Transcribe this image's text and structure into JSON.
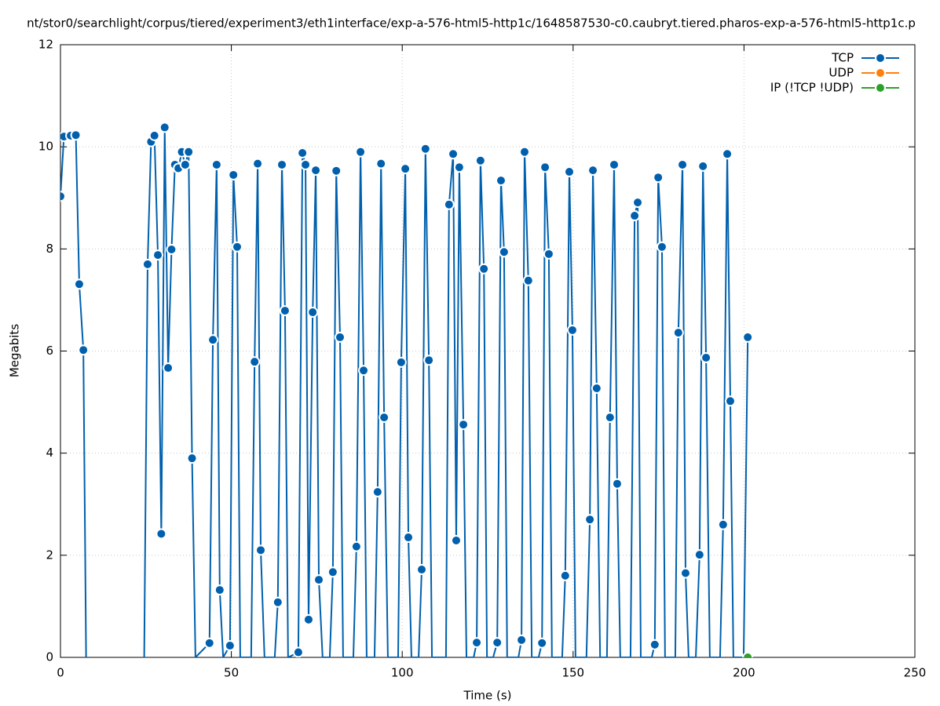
{
  "chart_data": {
    "type": "line",
    "title": "nt/stor0/searchlight/corpus/tiered/experiment3/eth1interface/exp-a-576-html5-http1c/1648587530-c0.caubryt.tiered.pharos-exp-a-576-html5-http1c.p",
    "x_label": "Time (s)",
    "y_label": "Megabits",
    "xlim": [
      0,
      250
    ],
    "xticks": [
      0,
      50,
      100,
      150,
      200,
      250
    ],
    "ylim": [
      0,
      12
    ],
    "yticks": [
      0,
      2,
      4,
      6,
      8,
      10,
      12
    ],
    "grid": true,
    "legend": "top-right",
    "series": [
      {
        "name": "TCP",
        "color": "#0060ad",
        "x": [
          0,
          1,
          3,
          4.5,
          5.5,
          6.7,
          7.5,
          16,
          24.5,
          25.5,
          26.5,
          27.5,
          28.5,
          29.5,
          30.5,
          31.5,
          32.5,
          33.5,
          34.5,
          35.5,
          36.5,
          37.5,
          38.5,
          39.5,
          43.6,
          44.6,
          45.7,
          46.6,
          47.6,
          49.6,
          50.6,
          51.7,
          52.6,
          55.8,
          56.8,
          57.7,
          58.6,
          59.7,
          62.7,
          63.6,
          64.8,
          65.7,
          66.6,
          69.6,
          70.8,
          71.7,
          72.6,
          73.8,
          74.7,
          75.6,
          76.7,
          78.8,
          79.7,
          80.7,
          81.8,
          82.7,
          85.7,
          86.6,
          87.8,
          88.7,
          89.6,
          91.9,
          92.8,
          93.8,
          94.7,
          95.8,
          98.8,
          99.7,
          100.9,
          101.8,
          102.7,
          104.8,
          105.7,
          106.8,
          107.8,
          108.7,
          112.8,
          113.7,
          114.9,
          115.8,
          116.7,
          117.9,
          118.8,
          120.9,
          121.8,
          122.9,
          123.9,
          124.8,
          126.6,
          127.8,
          128.9,
          129.8,
          130.7,
          134,
          134.9,
          135.8,
          136.9,
          137.9,
          139.9,
          140.9,
          141.8,
          142.9,
          143.8,
          146.8,
          147.7,
          148.9,
          149.8,
          150.7,
          153.9,
          154.9,
          155.8,
          156.9,
          157.9,
          159.9,
          160.8,
          162,
          162.9,
          163.8,
          166.8,
          168,
          168.9,
          169.8,
          173,
          173.9,
          174.9,
          176,
          176.9,
          179.9,
          180.8,
          182,
          182.9,
          183.8,
          185.9,
          187,
          188,
          188.9,
          190,
          193,
          193.9,
          195.1,
          196,
          196.9,
          199.9,
          201.1
        ],
        "values": [
          9.03,
          10.2,
          10.22,
          10.23,
          7.31,
          6.02,
          0,
          null,
          0,
          7.7,
          10.1,
          10.22,
          7.88,
          2.42,
          10.38,
          5.67,
          7.99,
          9.65,
          9.58,
          9.9,
          9.65,
          9.9,
          3.9,
          0,
          0.28,
          6.22,
          9.65,
          1.32,
          0,
          0.23,
          9.45,
          8.04,
          0,
          0,
          5.79,
          9.67,
          2.1,
          0,
          0,
          1.08,
          9.65,
          6.79,
          0,
          0.1,
          9.88,
          9.65,
          0.74,
          6.76,
          9.54,
          1.52,
          0,
          0,
          1.67,
          9.53,
          6.27,
          0,
          0,
          2.17,
          9.9,
          5.62,
          0,
          0,
          3.24,
          9.67,
          4.7,
          0,
          0,
          5.78,
          9.57,
          2.35,
          0,
          0,
          1.72,
          9.96,
          5.82,
          0,
          0,
          8.87,
          9.86,
          2.29,
          9.6,
          4.56,
          0,
          0,
          0.29,
          9.73,
          7.61,
          0,
          0,
          0.29,
          9.34,
          7.94,
          0,
          0,
          0.34,
          9.9,
          7.38,
          0,
          0,
          0.28,
          9.6,
          7.9,
          0,
          0,
          1.6,
          9.51,
          6.41,
          0,
          0,
          2.7,
          9.54,
          5.27,
          0,
          0,
          4.7,
          9.65,
          3.4,
          0,
          0,
          8.65,
          8.91,
          0,
          0,
          0.25,
          9.4,
          8.04,
          0,
          0,
          6.36,
          9.65,
          1.65,
          0,
          0,
          2.01,
          9.62,
          5.87,
          0,
          0,
          2.6,
          9.86,
          5.02,
          0,
          0,
          6.27
        ]
      },
      {
        "name": "UDP",
        "color": "#ff7f0e",
        "x": [],
        "values": []
      },
      {
        "name": "IP (!TCP  !UDP)",
        "color": "#2ca02c",
        "x": [
          201.1
        ],
        "values": [
          0
        ]
      }
    ]
  }
}
